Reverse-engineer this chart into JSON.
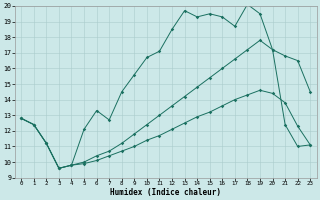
{
  "xlabel": "Humidex (Indice chaleur)",
  "bg_color": "#cce8e8",
  "grid_color": "#aacccc",
  "line_color": "#1a7060",
  "xlim": [
    -0.5,
    23.5
  ],
  "ylim": [
    9,
    20
  ],
  "xticks": [
    0,
    1,
    2,
    3,
    4,
    5,
    6,
    7,
    8,
    9,
    10,
    11,
    12,
    13,
    14,
    15,
    16,
    17,
    18,
    19,
    20,
    21,
    22,
    23
  ],
  "yticks": [
    9,
    10,
    11,
    12,
    13,
    14,
    15,
    16,
    17,
    18,
    19,
    20
  ],
  "line1_x": [
    0,
    1,
    2,
    3,
    4,
    5,
    6,
    7,
    8,
    9,
    10,
    11,
    12,
    13,
    14,
    15,
    16,
    17,
    18,
    19,
    20,
    21,
    22,
    23
  ],
  "line1_y": [
    12.8,
    12.4,
    11.2,
    9.6,
    9.8,
    9.9,
    10.1,
    10.4,
    10.7,
    11.0,
    11.4,
    11.7,
    12.1,
    12.5,
    12.9,
    13.2,
    13.6,
    14.0,
    14.3,
    14.6,
    14.4,
    13.8,
    12.3,
    11.1
  ],
  "line2_x": [
    0,
    1,
    2,
    3,
    4,
    5,
    6,
    7,
    8,
    9,
    10,
    11,
    12,
    13,
    14,
    15,
    16,
    17,
    18,
    19,
    20,
    21,
    22,
    23
  ],
  "line2_y": [
    12.8,
    12.4,
    11.2,
    9.6,
    9.8,
    12.1,
    13.3,
    12.7,
    14.5,
    15.6,
    16.7,
    17.1,
    18.5,
    19.7,
    19.3,
    19.5,
    19.3,
    18.7,
    20.1,
    19.5,
    17.2,
    12.4,
    11.0,
    11.1
  ],
  "line3_x": [
    0,
    1,
    2,
    3,
    4,
    5,
    6,
    7,
    8,
    9,
    10,
    11,
    12,
    13,
    14,
    15,
    16,
    17,
    18,
    19,
    20,
    21,
    22,
    23
  ],
  "line3_y": [
    12.8,
    12.4,
    11.2,
    9.6,
    9.8,
    10.0,
    10.4,
    10.7,
    11.2,
    11.8,
    12.4,
    13.0,
    13.6,
    14.2,
    14.8,
    15.4,
    16.0,
    16.6,
    17.2,
    17.8,
    17.2,
    16.8,
    16.5,
    14.5
  ]
}
